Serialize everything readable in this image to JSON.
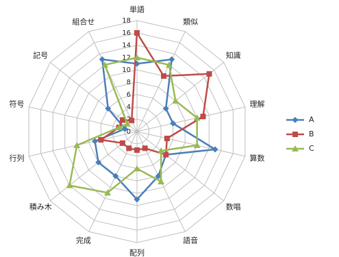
{
  "chart_data": {
    "type": "radar",
    "axes": [
      "単語",
      "類似",
      "知識",
      "理解",
      "算数",
      "数唱",
      "語音",
      "配列",
      "完成",
      "積み木",
      "行列",
      "符号",
      "記号",
      "組合せ"
    ],
    "rlim": [
      0,
      18
    ],
    "ticks": [
      0,
      2,
      4,
      6,
      8,
      10,
      12,
      14,
      16,
      18
    ],
    "grid": true,
    "legend_position": "right",
    "series": [
      {
        "name": "A",
        "color": "#4a7ebb",
        "marker": "diamond",
        "values": [
          11,
          13,
          6,
          6,
          13,
          6,
          8,
          11,
          8,
          8,
          7,
          2,
          6,
          13
        ]
      },
      {
        "name": "B",
        "color": "#be4b48",
        "marker": "square",
        "values": [
          16,
          10,
          15,
          11,
          5,
          6,
          3,
          3,
          3,
          3,
          6,
          3,
          3,
          2
        ]
      },
      {
        "name": "C",
        "color": "#98b954",
        "marker": "triangle",
        "values": [
          12,
          12,
          8,
          10,
          10,
          5,
          9,
          6,
          11,
          14,
          10,
          3,
          2,
          12
        ]
      }
    ]
  }
}
